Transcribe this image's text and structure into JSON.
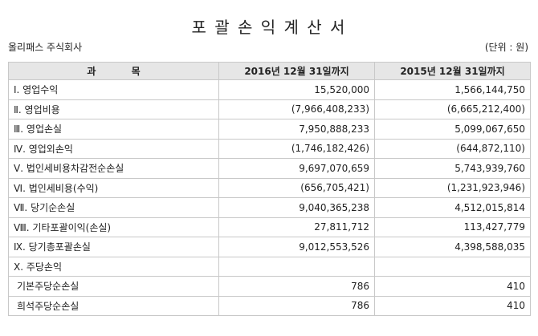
{
  "header": {
    "title": "포 괄 손 익 계 산 서",
    "company": "올리패스 주식회사",
    "unit": "(단위 : 원)"
  },
  "table": {
    "columns": [
      "과 목",
      "2016년 12월 31일까지",
      "2015년 12월 31일까지"
    ],
    "rows": [
      [
        "Ⅰ. 영업수익",
        "15,520,000",
        "1,566,144,750"
      ],
      [
        "Ⅱ. 영업비용",
        "(7,966,408,233)",
        "(6,665,212,400)"
      ],
      [
        "Ⅲ. 영업손실",
        "7,950,888,233",
        "5,099,067,650"
      ],
      [
        "Ⅳ. 영업외손익",
        "(1,746,182,426)",
        "(644,872,110)"
      ],
      [
        "Ⅴ. 법인세비용차감전순손실",
        "9,697,070,659",
        "5,743,939,760"
      ],
      [
        "Ⅵ. 법인세비용(수익)",
        "(656,705,421)",
        "(1,231,923,946)"
      ],
      [
        "Ⅶ. 당기순손실",
        "9,040,365,238",
        "4,512,015,814"
      ],
      [
        "Ⅷ. 기타포괄이익(손실)",
        "27,811,712",
        "113,427,779"
      ],
      [
        "Ⅸ. 당기총포괄손실",
        "9,012,553,526",
        "4,398,588,035"
      ],
      [
        "Ⅹ. 주당손익"
      ],
      [
        "기본주당순손실",
        "786",
        "410"
      ],
      [
        "희석주당순손실",
        "786",
        "410"
      ]
    ]
  }
}
